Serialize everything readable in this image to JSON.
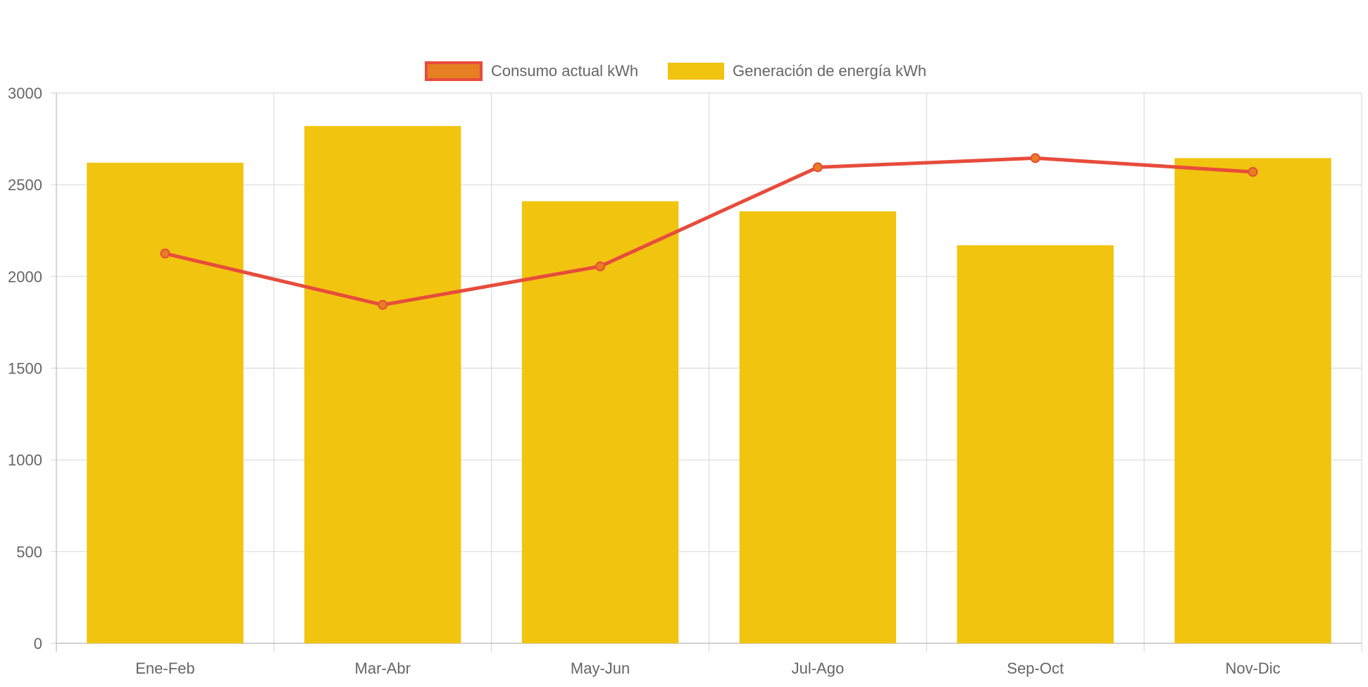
{
  "chart_data": {
    "type": "bar",
    "title": "",
    "xlabel": "",
    "ylabel": "",
    "ylim": [
      0,
      3000
    ],
    "yticks": [
      "0",
      "500",
      "1000",
      "1500",
      "2000",
      "2500",
      "3000"
    ],
    "categories": [
      "Ene-Feb",
      "Mar-Abr",
      "May-Jun",
      "Jul-Ago",
      "Sep-Oct",
      "Nov-Dic"
    ],
    "legend_position": "top",
    "grid": true,
    "series": [
      {
        "name": "Consumo actual kWh",
        "type": "line",
        "color": "#e74c3c",
        "point_color": "#e67e22",
        "values": [
          2125,
          1845,
          2055,
          2595,
          2645,
          2570
        ]
      },
      {
        "name": "Generación de energía kWh",
        "type": "bar",
        "color": "#f1c40f",
        "values": [
          2620,
          2820,
          2410,
          2355,
          2170,
          2645
        ]
      }
    ]
  }
}
